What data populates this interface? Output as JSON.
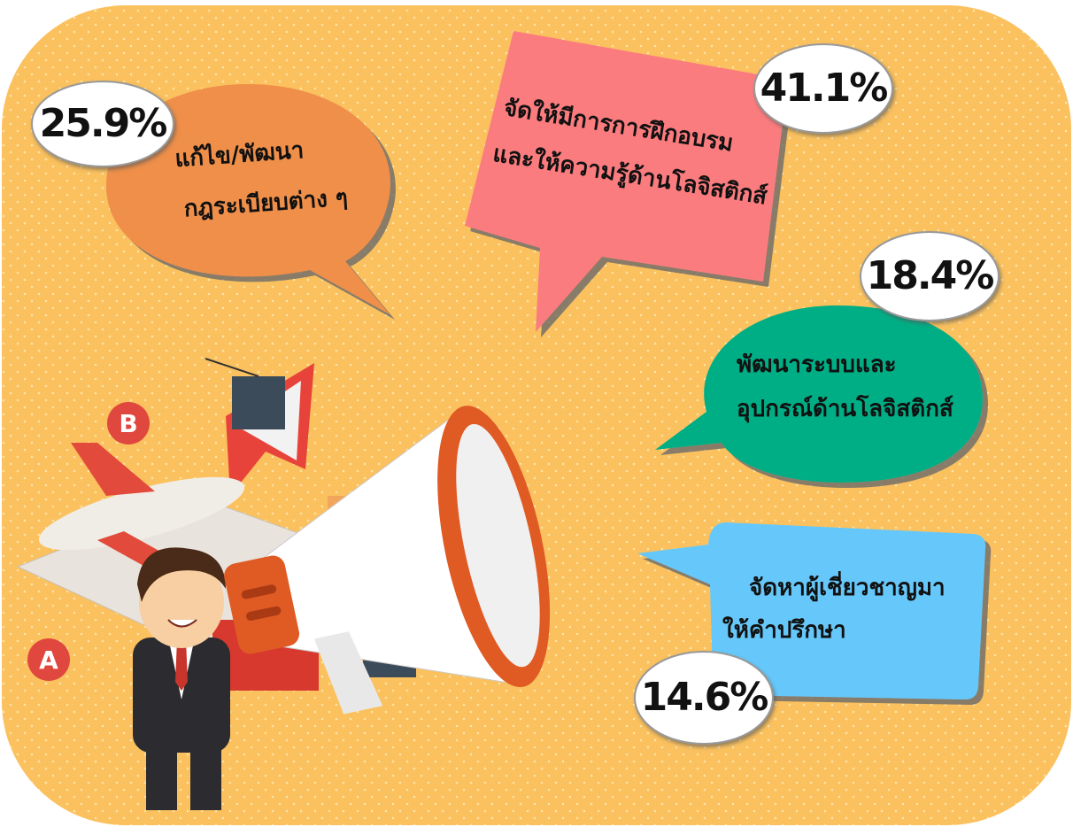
{
  "callouts": [
    {
      "lines": [
        "แก้ไข/พัฒนา",
        "กฎระเบียบต่าง ๆ"
      ],
      "percent": "25.9%"
    },
    {
      "lines": [
        "จัดให้มีการการฝึกอบรม",
        "และให้ความรู้ด้านโลจิสติกส์"
      ],
      "percent": "41.1%"
    },
    {
      "lines": [
        "พัฒนาระบบและ",
        "อุปกรณ์ด้านโลจิสติกส์"
      ],
      "percent": "18.4%"
    },
    {
      "lines": [
        "จัดหาผู้เชี่ยวชาญมา",
        "ให้คำปรึกษา"
      ],
      "percent": "14.6%"
    }
  ]
}
